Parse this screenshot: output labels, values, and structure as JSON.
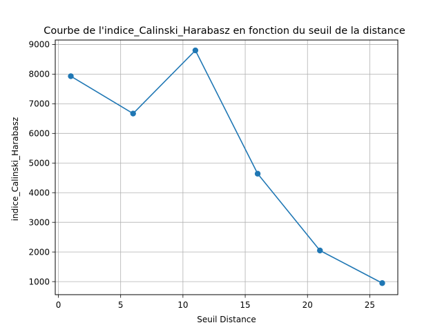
{
  "chart_data": {
    "type": "line",
    "title": "Courbe de l'indice_Calinski_Harabasz en fonction du seuil de la distance",
    "xlabel": "Seuil Distance",
    "ylabel": "indice_Calinski_Harabasz",
    "xlim": [
      -0.25,
      27.25
    ],
    "ylim": [
      560,
      9150
    ],
    "xticks": [
      0,
      5,
      10,
      15,
      20,
      25
    ],
    "yticks": [
      1000,
      2000,
      3000,
      4000,
      5000,
      6000,
      7000,
      8000,
      9000
    ],
    "grid": true,
    "marker": "circle",
    "color": "#1f77b4",
    "series": [
      {
        "x": [
          1,
          6,
          11,
          16,
          21,
          26
        ],
        "values": [
          7930,
          6670,
          8800,
          4640,
          2050,
          950
        ]
      }
    ]
  }
}
